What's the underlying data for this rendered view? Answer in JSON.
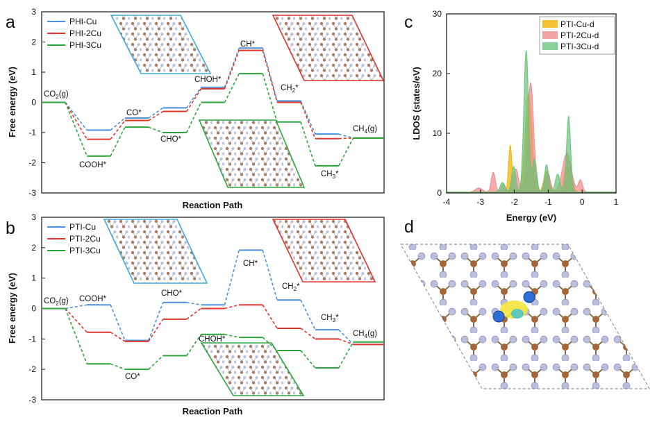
{
  "panels": {
    "a": "a",
    "b": "b",
    "c": "c",
    "d": "d"
  },
  "chart_data": [
    {
      "panel": "a",
      "type": "line",
      "xlabel": "Reaction Path",
      "ylabel": "Free energy (eV)",
      "ylim": [
        -3,
        3
      ],
      "yticks": [
        "3",
        "2",
        "1",
        "0",
        "-1",
        "-2",
        "-3"
      ],
      "legend": "top-left",
      "series": [
        {
          "name": "PHI-Cu",
          "color": "#4a90d9",
          "values": [
            0,
            -0.92,
            -0.52,
            -0.18,
            0.5,
            1.8,
            0.05,
            -1.05,
            -1.18
          ]
        },
        {
          "name": "PHI-2Cu",
          "color": "#e0342a",
          "values": [
            0,
            -1.22,
            -0.6,
            -0.3,
            0.45,
            1.72,
            0,
            -1.2,
            -1.18
          ]
        },
        {
          "name": "PHI-3Cu",
          "color": "#2aa53a",
          "values": [
            0,
            -1.78,
            -0.82,
            -1.0,
            0,
            0.95,
            -0.65,
            -2.1,
            -1.18
          ]
        }
      ],
      "labels": [
        {
          "text": "CO",
          "sub": "2",
          "tail": "(g)"
        },
        {
          "text": "COOH*"
        },
        {
          "text": "CO*"
        },
        {
          "text": "CHO*"
        },
        {
          "text": "CHOH*"
        },
        {
          "text": "CH*"
        },
        {
          "text": "CH",
          "sub": "2",
          "tail": "*"
        },
        {
          "text": "CH",
          "sub": "3",
          "tail": "*"
        },
        {
          "text": "CH",
          "sub": "4",
          "tail": "(g)"
        }
      ]
    },
    {
      "panel": "b",
      "type": "line",
      "xlabel": "Reaction Path",
      "ylabel": "Free energy (eV)",
      "ylim": [
        -3,
        3
      ],
      "yticks": [
        "3",
        "2",
        "1",
        "0",
        "-1",
        "-2",
        "-3"
      ],
      "legend": "top-left",
      "series": [
        {
          "name": "PTI-Cu",
          "color": "#4a90d9",
          "values": [
            0,
            0.12,
            -1.05,
            0.2,
            0.12,
            1.92,
            0.28,
            -0.7,
            -1.18
          ]
        },
        {
          "name": "PTI-2Cu",
          "color": "#e0342a",
          "values": [
            0,
            -0.78,
            -1.08,
            -0.35,
            0,
            0.12,
            -0.65,
            -1.0,
            -1.18
          ]
        },
        {
          "name": "PTI-3Cu",
          "color": "#2aa53a",
          "values": [
            0,
            -1.82,
            -2.0,
            -1.55,
            -0.85,
            -0.95,
            -1.38,
            -1.95,
            -1.1
          ]
        }
      ],
      "labels": [
        {
          "text": "CO",
          "sub": "2",
          "tail": "(g)"
        },
        {
          "text": "COOH*"
        },
        {
          "text": "CO*"
        },
        {
          "text": "CHO*"
        },
        {
          "text": "CHOH*"
        },
        {
          "text": "CH*"
        },
        {
          "text": "CH",
          "sub": "2",
          "tail": "*"
        },
        {
          "text": "CH",
          "sub": "3",
          "tail": "*"
        },
        {
          "text": "CH",
          "sub": "4",
          "tail": "(g)"
        }
      ]
    },
    {
      "panel": "c",
      "type": "area",
      "xlabel": "Energy (eV)",
      "ylabel": "LDOS (states/eV)",
      "xlim": [
        -4,
        1
      ],
      "ylim": [
        0,
        30
      ],
      "xticks": [
        "-4",
        "-3",
        "-2",
        "-1",
        "0",
        "1"
      ],
      "yticks": [
        "30",
        "20",
        "10",
        "0"
      ],
      "legend": "top-right",
      "series": [
        {
          "name": "PTI-Cu-d",
          "color": "#f2b100",
          "peaks": [
            [
              -2.12,
              7.8,
              0.05
            ],
            [
              -1.58,
              16.5,
              0.1
            ],
            [
              -0.42,
              6.0,
              0.09
            ],
            [
              -1.05,
              3.5,
              0.08
            ]
          ]
        },
        {
          "name": "PTI-2Cu-d",
          "color": "#ef8a8a",
          "peaks": [
            [
              -3.05,
              0.7,
              0.1
            ],
            [
              -2.62,
              3.3,
              0.06
            ],
            [
              -2.32,
              1.4,
              0.06
            ],
            [
              -1.96,
              3.9,
              0.08
            ],
            [
              -1.52,
              18.3,
              0.09
            ],
            [
              -1.02,
              3.3,
              0.08
            ],
            [
              -0.45,
              6.5,
              0.13
            ],
            [
              -0.05,
              2.0,
              0.06
            ]
          ]
        },
        {
          "name": "PTI-3Cu-d",
          "color": "#6bc47d",
          "peaks": [
            [
              -2.35,
              1.6,
              0.07
            ],
            [
              -2.02,
              4.3,
              0.06
            ],
            [
              -1.65,
              23.7,
              0.07
            ],
            [
              -1.4,
              5.5,
              0.06
            ],
            [
              -1.05,
              4.6,
              0.06
            ],
            [
              -0.4,
              12.7,
              0.06
            ],
            [
              -0.72,
              3.0,
              0.07
            ]
          ]
        }
      ]
    }
  ]
}
